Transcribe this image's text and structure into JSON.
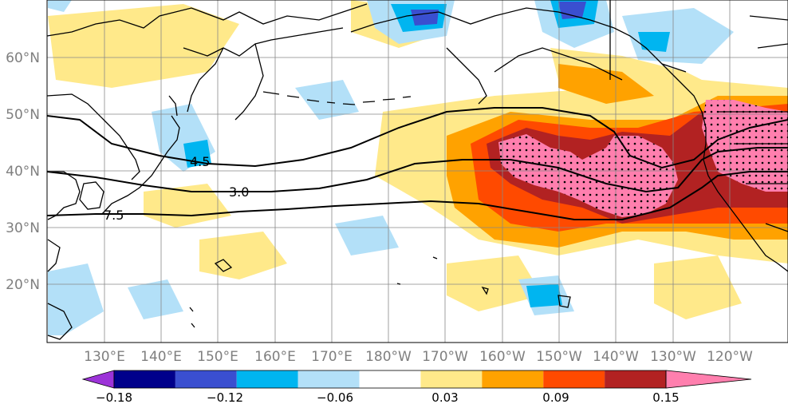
{
  "map": {
    "lat_labels": [
      "60°N",
      "50°N",
      "40°N",
      "30°N",
      "20°N"
    ],
    "lon_labels": [
      "130°E",
      "140°E",
      "150°E",
      "160°E",
      "170°E",
      "180°W",
      "170°W",
      "160°W",
      "150°W",
      "140°W",
      "130°W",
      "120°W"
    ],
    "contour_labels": [
      "4.5",
      "3.0",
      "7.5"
    ],
    "label_color": "#7f7f7f"
  },
  "colorbar": {
    "colors": [
      "#9c33d8",
      "#00008b",
      "#3a4fd0",
      "#00b5f0",
      "#b3e0f8",
      "#ffffff",
      "#ffe98a",
      "#ffa200",
      "#ff4a00",
      "#b22222",
      "#ff7fae"
    ],
    "tick_labels": [
      "−0.18",
      "−0.12",
      "−0.06",
      "0.03",
      "0.09",
      "0.15"
    ]
  }
}
